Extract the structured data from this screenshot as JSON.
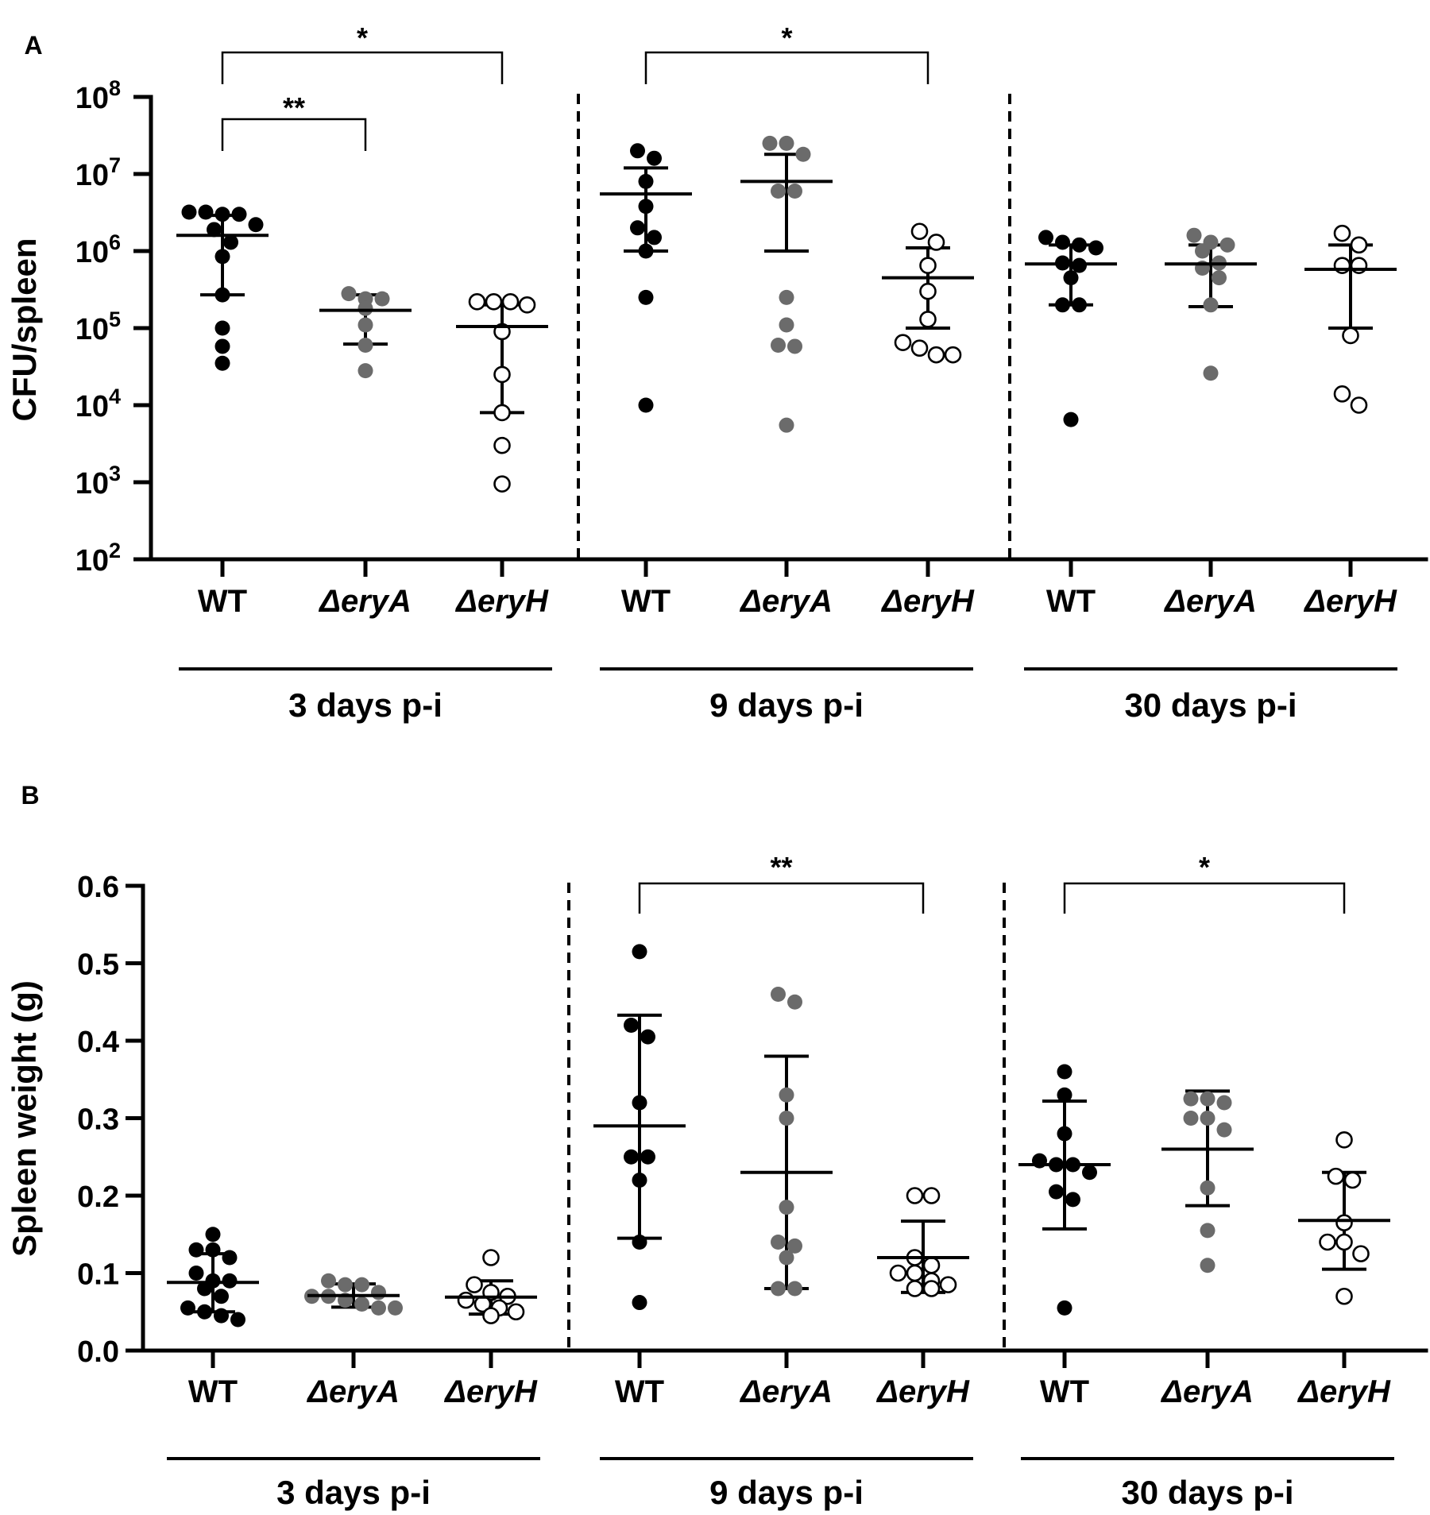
{
  "chart_data": [
    {
      "panel": "A",
      "type": "scatter",
      "yscale": "log",
      "ylabel": "CFU/spleen",
      "ylim": [
        100,
        100000000
      ],
      "ytick_base": "10",
      "ytick_exponents": [
        "2",
        "3",
        "4",
        "5",
        "6",
        "7",
        "8"
      ],
      "groups": [
        {
          "label": "3 days p-i",
          "categories": [
            {
              "label": "WT",
              "color": "#000000",
              "fill": "filled",
              "mean": 1600000,
              "sd_lo": 270000,
              "sd_hi": 2900000,
              "values": [
                3000000,
                3000000,
                3200000,
                3200000,
                2200000,
                1900000,
                1300000,
                850000,
                270000,
                100000,
                58000,
                35000
              ]
            },
            {
              "label": "ΔeryA",
              "color": "#6b6b6b",
              "fill": "filled",
              "mean": 170000,
              "sd_lo": 62000,
              "sd_hi": 270000,
              "values": [
                280000,
                240000,
                240000,
                180000,
                110000,
                60000,
                28000
              ]
            },
            {
              "label": "ΔeryH",
              "color": "#000000",
              "fill": "open",
              "mean": 105000,
              "sd_lo": 8000,
              "sd_hi": 200000,
              "values": [
                220000,
                220000,
                200000,
                220000,
                90000,
                25000,
                8000,
                3000,
                950
              ]
            }
          ],
          "comparisons": [
            {
              "from": "WT",
              "to": "ΔeryA",
              "label": "**"
            },
            {
              "from": "WT",
              "to": "ΔeryH",
              "label": "*"
            }
          ]
        },
        {
          "label": "9 days p-i",
          "categories": [
            {
              "label": "WT",
              "color": "#000000",
              "fill": "filled",
              "mean": 5500000,
              "sd_lo": 1000000,
              "sd_hi": 12000000,
              "values": [
                20000000,
                16000000,
                8000000,
                3800000,
                2000000,
                1500000,
                1000000,
                250000,
                10000
              ]
            },
            {
              "label": "ΔeryA",
              "color": "#6b6b6b",
              "fill": "filled",
              "mean": 8000000,
              "sd_lo": 1000000,
              "sd_hi": 18000000,
              "values": [
                25000000,
                25000000,
                18000000,
                6000000,
                6000000,
                250000,
                110000,
                60000,
                58000,
                5500
              ]
            },
            {
              "label": "ΔeryH",
              "color": "#000000",
              "fill": "open",
              "mean": 450000,
              "sd_lo": 100000,
              "sd_hi": 1100000,
              "values": [
                1800000,
                1300000,
                650000,
                300000,
                130000,
                65000,
                55000,
                45000,
                45000
              ]
            }
          ],
          "comparisons": [
            {
              "from": "WT",
              "to": "ΔeryH",
              "label": "*"
            }
          ]
        },
        {
          "label": "30 days p-i",
          "categories": [
            {
              "label": "WT",
              "color": "#000000",
              "fill": "filled",
              "mean": 680000,
              "sd_lo": 200000,
              "sd_hi": 1200000,
              "values": [
                1500000,
                1300000,
                1200000,
                1100000,
                700000,
                650000,
                450000,
                200000,
                200000,
                6500
              ]
            },
            {
              "label": "ΔeryA",
              "color": "#6b6b6b",
              "fill": "filled",
              "mean": 680000,
              "sd_lo": 190000,
              "sd_hi": 1200000,
              "values": [
                1600000,
                1300000,
                1200000,
                1000000,
                700000,
                600000,
                450000,
                200000,
                26000
              ]
            },
            {
              "label": "ΔeryH",
              "color": "#000000",
              "fill": "open",
              "mean": 580000,
              "sd_lo": 100000,
              "sd_hi": 1200000,
              "values": [
                1700000,
                1200000,
                650000,
                650000,
                80000,
                14000,
                10000
              ]
            }
          ],
          "comparisons": []
        }
      ]
    },
    {
      "panel": "B",
      "type": "scatter",
      "yscale": "linear",
      "ylabel": "Spleen weight (g)",
      "ylim": [
        0.0,
        0.6
      ],
      "yticks": [
        "0.0",
        "0.1",
        "0.2",
        "0.3",
        "0.4",
        "0.5",
        "0.6"
      ],
      "groups": [
        {
          "label": "3 days p-i",
          "categories": [
            {
              "label": "WT",
              "color": "#000000",
              "fill": "filled",
              "mean": 0.088,
              "sd_lo": 0.05,
              "sd_hi": 0.125,
              "values": [
                0.15,
                0.13,
                0.12,
                0.13,
                0.1,
                0.09,
                0.08,
                0.09,
                0.07,
                0.055,
                0.05,
                0.045,
                0.04
              ]
            },
            {
              "label": "ΔeryA",
              "color": "#6b6b6b",
              "fill": "filled",
              "mean": 0.071,
              "sd_lo": 0.056,
              "sd_hi": 0.086,
              "values": [
                0.09,
                0.085,
                0.085,
                0.075,
                0.07,
                0.07,
                0.065,
                0.06,
                0.055,
                0.055
              ]
            },
            {
              "label": "ΔeryH",
              "color": "#000000",
              "fill": "open",
              "mean": 0.069,
              "sd_lo": 0.047,
              "sd_hi": 0.09,
              "values": [
                0.12,
                0.085,
                0.075,
                0.07,
                0.065,
                0.06,
                0.055,
                0.05,
                0.045
              ]
            }
          ],
          "comparisons": []
        },
        {
          "label": "9 days p-i",
          "categories": [
            {
              "label": "WT",
              "color": "#000000",
              "fill": "filled",
              "mean": 0.29,
              "sd_lo": 0.145,
              "sd_hi": 0.433,
              "values": [
                0.515,
                0.42,
                0.405,
                0.32,
                0.25,
                0.25,
                0.22,
                0.14,
                0.062
              ]
            },
            {
              "label": "ΔeryA",
              "color": "#6b6b6b",
              "fill": "filled",
              "mean": 0.23,
              "sd_lo": 0.08,
              "sd_hi": 0.38,
              "values": [
                0.46,
                0.45,
                0.33,
                0.3,
                0.185,
                0.14,
                0.135,
                0.12,
                0.08,
                0.08
              ]
            },
            {
              "label": "ΔeryH",
              "color": "#000000",
              "fill": "open",
              "mean": 0.12,
              "sd_lo": 0.075,
              "sd_hi": 0.167,
              "values": [
                0.2,
                0.2,
                0.12,
                0.11,
                0.1,
                0.1,
                0.09,
                0.085,
                0.08,
                0.08
              ]
            }
          ],
          "comparisons": [
            {
              "from": "WT",
              "to": "ΔeryH",
              "label": "**"
            }
          ]
        },
        {
          "label": "30 days p-i",
          "categories": [
            {
              "label": "WT",
              "color": "#000000",
              "fill": "filled",
              "mean": 0.24,
              "sd_lo": 0.157,
              "sd_hi": 0.322,
              "values": [
                0.36,
                0.33,
                0.28,
                0.245,
                0.24,
                0.24,
                0.23,
                0.205,
                0.195,
                0.055
              ]
            },
            {
              "label": "ΔeryA",
              "color": "#6b6b6b",
              "fill": "filled",
              "mean": 0.26,
              "sd_lo": 0.187,
              "sd_hi": 0.335,
              "values": [
                0.325,
                0.325,
                0.32,
                0.3,
                0.3,
                0.285,
                0.21,
                0.155,
                0.11
              ]
            },
            {
              "label": "ΔeryH",
              "color": "#000000",
              "fill": "open",
              "mean": 0.168,
              "sd_lo": 0.105,
              "sd_hi": 0.23,
              "values": [
                0.272,
                0.225,
                0.22,
                0.165,
                0.14,
                0.14,
                0.125,
                0.07
              ]
            }
          ],
          "comparisons": [
            {
              "from": "WT",
              "to": "ΔeryH",
              "label": "*"
            }
          ]
        }
      ]
    }
  ]
}
